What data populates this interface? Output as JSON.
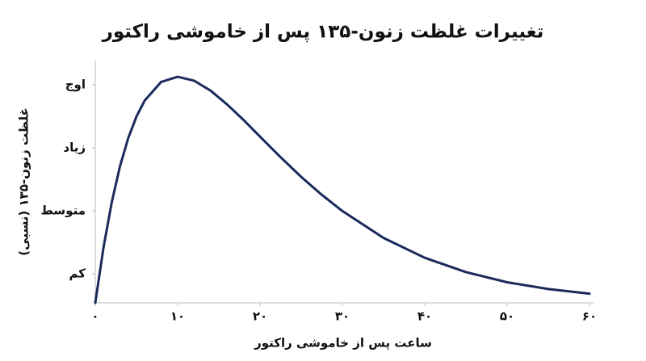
{
  "chart_data": {
    "type": "line",
    "title": "تغییرات غلظت زنون-۱۳۵ پس از خاموشی راکتور",
    "x_label": "ساعت پس از خاموشی راکتور",
    "y_label": "غلظت زنون-۱۳۵ (نسبی)",
    "x": [
      0,
      1,
      2,
      3,
      4,
      5,
      6,
      8,
      10,
      12,
      14,
      16,
      18,
      20,
      22.5,
      25,
      27.5,
      30,
      35,
      40,
      45,
      50,
      55,
      60
    ],
    "values": [
      0,
      0.229,
      0.415,
      0.564,
      0.68,
      0.769,
      0.835,
      0.912,
      0.933,
      0.917,
      0.876,
      0.819,
      0.755,
      0.686,
      0.601,
      0.52,
      0.446,
      0.379,
      0.268,
      0.186,
      0.127,
      0.085,
      0.057,
      0.038
    ],
    "color": "#1b2a5c",
    "xlim": [
      0,
      60
    ],
    "xticks": [
      {
        "value": 0,
        "label": "۰"
      },
      {
        "value": 10,
        "label": "۱۰"
      },
      {
        "value": 20,
        "label": "۲۰"
      },
      {
        "value": 30,
        "label": "۳۰"
      },
      {
        "value": 40,
        "label": "۴۰"
      },
      {
        "value": 50,
        "label": "۵۰"
      },
      {
        "value": 60,
        "label": "۶۰"
      }
    ],
    "ylim": [
      0,
      1
    ],
    "yticks": [
      {
        "value": 0.12,
        "label": "کم"
      },
      {
        "value": 0.38,
        "label": "متوسط"
      },
      {
        "value": 0.64,
        "label": "زیاد"
      },
      {
        "value": 0.9,
        "label": "اوج"
      }
    ]
  }
}
